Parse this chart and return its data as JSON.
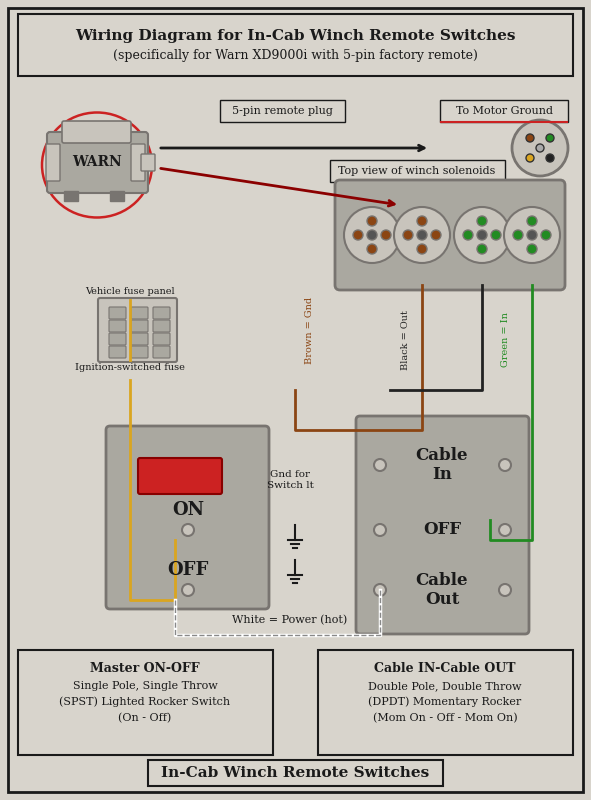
{
  "title_line1": "Wiring Diagram for In-Cab Winch Remote Switches",
  "title_line2": "(specifically for Warn XD9000i with 5-pin factory remote)",
  "footer_title": "In-Cab Winch Remote Switches",
  "bg_color": "#d8d4cc",
  "box_bg": "#d8d4cc",
  "white": "#ffffff",
  "black": "#1a1a1a",
  "gray_light": "#b0aca4",
  "gray_dark": "#888480",
  "warn_label": "WARN",
  "label_5pin": "5-pin remote plug",
  "label_motor_ground": "To Motor Ground",
  "label_top_view": "Top view of winch solenoids",
  "label_fuse_panel": "Vehicle fuse panel",
  "label_ign_fuse": "Ignition-switched fuse",
  "label_gnd_switch": "Gnd for\nSwitch lt",
  "label_on": "ON",
  "label_off1": "OFF",
  "label_off2": "OFF",
  "label_cable_in": "Cable\nIn",
  "label_cable_out": "Cable\nOut",
  "label_brown": "Brown = Gnd",
  "label_black": "Black = Out",
  "label_green": "Green = In",
  "label_white": "White = Power (hot)",
  "bottom_left_title": "Master ON-OFF",
  "bottom_left_line1": "Single Pole, Single Throw",
  "bottom_left_line2": "(SPST) Lighted Rocker Switch",
  "bottom_left_line3": "(On - Off)",
  "bottom_right_title": "Cable IN-Cable OUT",
  "bottom_right_line1": "Double Pole, Double Throw",
  "bottom_right_line2": "(DPDT) Momentary Rocker",
  "bottom_right_line3": "(Mom On - Off - Mom On)",
  "color_brown": "#8B4513",
  "color_black": "#222222",
  "color_green": "#228B22",
  "color_yellow": "#DAA520",
  "color_red": "#CC0000",
  "color_dark_red": "#8B0000",
  "color_wire_red": "#CC2222"
}
